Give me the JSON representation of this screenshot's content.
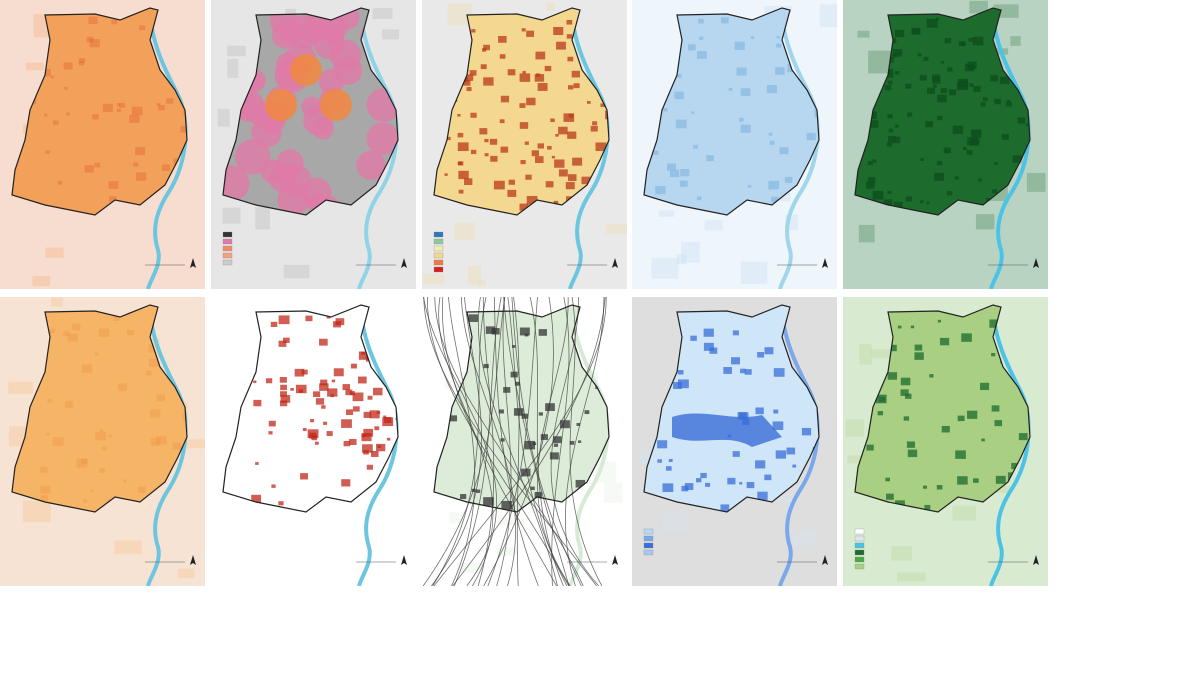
{
  "panels": [
    {
      "id": "heat-map-1",
      "background": "#f7ddd0",
      "fill": "#f2a05a",
      "accent": "#e0582a",
      "water": "#6cc6e0",
      "legend": []
    },
    {
      "id": "buffer-map",
      "background": "#e6e6e6",
      "fill": "#a8a8a8",
      "accent": "#e07aa8",
      "water": "#8fd3e6",
      "legend": [
        "#333333",
        "#e07aa8",
        "#f08a6a",
        "#f5a080",
        "#cccccc"
      ]
    },
    {
      "id": "classified-map",
      "background": "#e9e9e9",
      "fill": "#f5d890",
      "accent": "#b83a1a",
      "water": "#6cc6e0",
      "legend": [
        "#2e78b8",
        "#8cc8a0",
        "#f4ebb0",
        "#f5d890",
        "#ef7a40",
        "#d42020"
      ]
    },
    {
      "id": "blue-gradient-map",
      "background": "#eef5fb",
      "fill": "#b7d6ef",
      "accent": "#8ab9e2",
      "water": "#9fd6ec",
      "legend": []
    },
    {
      "id": "green-cover-map",
      "background": "#b9d3c3",
      "fill": "#1e6b2e",
      "accent": "#0c4d1c",
      "water": "#4cc3e6",
      "legend": []
    },
    {
      "id": "heat-map-2",
      "background": "#f7e3d4",
      "fill": "#f6b466",
      "accent": "#ee9040",
      "water": "#6cc6e0",
      "legend": []
    },
    {
      "id": "density-map",
      "background": "#ffffff",
      "fill": "#ffffff",
      "accent": "#c0281a",
      "water": "#6cc6e0",
      "legend": []
    },
    {
      "id": "flow-lines-map",
      "background": "#ffffff",
      "fill": "#dcecd8",
      "accent": "#333333",
      "water": "#d6ead6",
      "legend": []
    },
    {
      "id": "flood-map",
      "background": "#dedede",
      "fill": "#cfe6f8",
      "accent": "#3a6ed8",
      "water": "#7aa8ea",
      "legend": [
        "#b6d8f4",
        "#7aa8ea",
        "#3a6ed8",
        "#a6c8ee"
      ]
    },
    {
      "id": "green-space-map",
      "background": "#d8ead0",
      "fill": "#a9cf82",
      "accent": "#1e6b2e",
      "water": "#4cc3e6",
      "legend": [
        "#ffffff",
        "#dde8ee",
        "#4cc3e6",
        "#1e6b2e",
        "#4aa840",
        "#a9cf82"
      ]
    }
  ]
}
